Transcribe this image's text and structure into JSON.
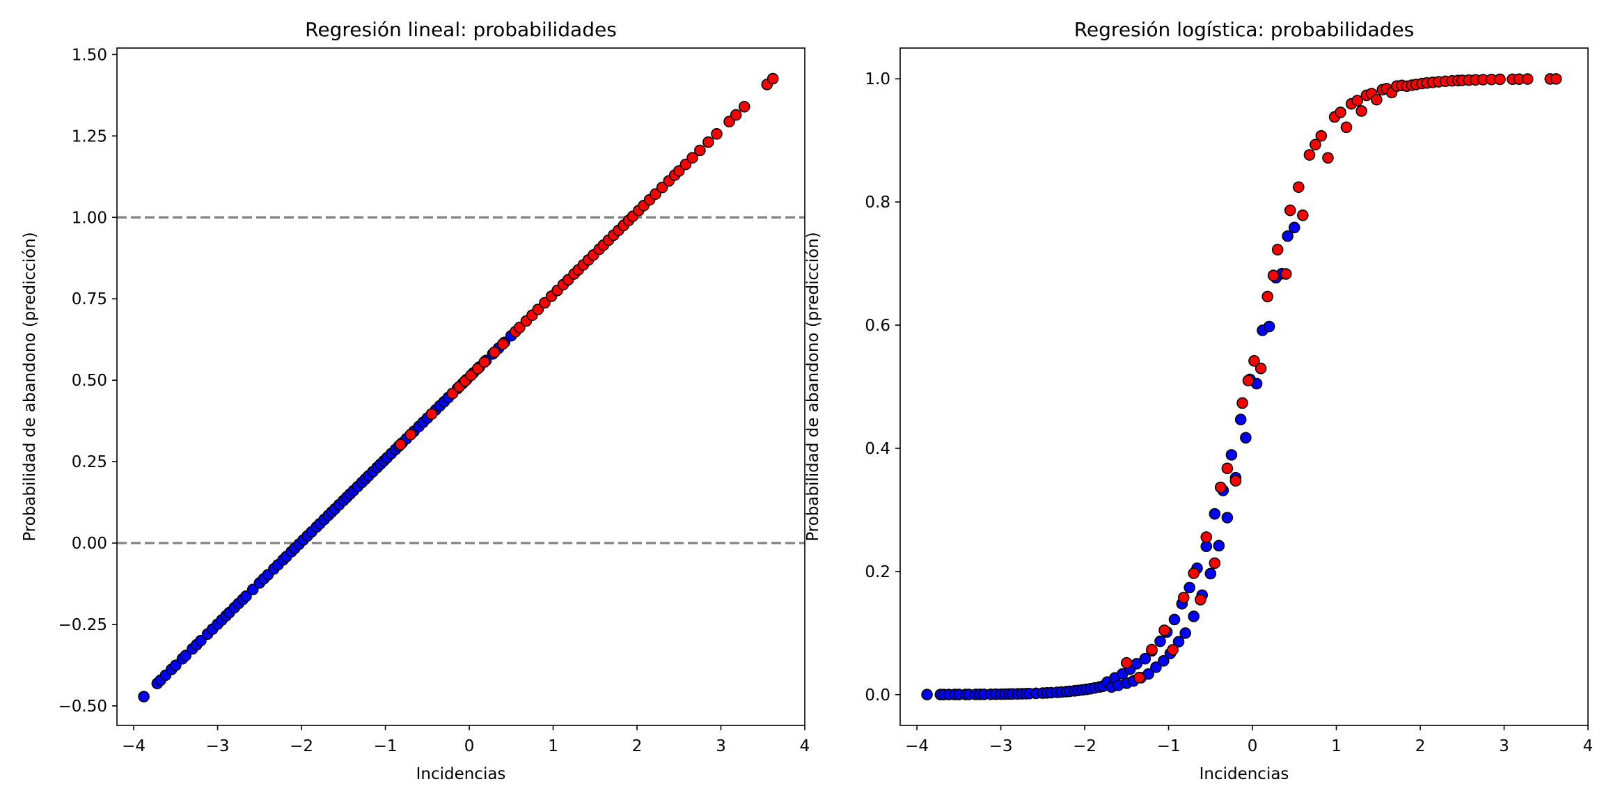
{
  "chart_data": [
    {
      "type": "scatter",
      "title": "Regresión lineal: probabilidades",
      "xlabel": "Incidencias",
      "ylabel": "Probabilidad de abandono (predicción)",
      "xlim": [
        -4.2,
        4.0
      ],
      "ylim": [
        -0.56,
        1.52
      ],
      "xticks": [
        -4,
        -3,
        -2,
        -1,
        0,
        1,
        2,
        3,
        4
      ],
      "xtick_labels": [
        "−4",
        "−3",
        "−2",
        "−1",
        "0",
        "1",
        "2",
        "3",
        "4"
      ],
      "yticks": [
        -0.5,
        -0.25,
        0.0,
        0.25,
        0.5,
        0.75,
        1.0,
        1.25,
        1.5
      ],
      "ytick_labels": [
        "−0.50",
        "−0.25",
        "0.00",
        "0.25",
        "0.50",
        "0.75",
        "1.00",
        "1.25",
        "1.50"
      ],
      "hlines": [
        {
          "y": 0.0,
          "style": "dashed",
          "color": "#808080"
        },
        {
          "y": 1.0,
          "style": "dashed",
          "color": "#808080"
        }
      ],
      "grid": false,
      "model": {
        "kind": "linear",
        "intercept": 0.51,
        "slope": 0.253
      },
      "series": [
        {
          "color": "#0000ff",
          "edgecolor": "#000000",
          "x": [
            -3.88,
            -3.72,
            -3.68,
            -3.62,
            -3.55,
            -3.5,
            -3.42,
            -3.38,
            -3.3,
            -3.25,
            -3.2,
            -3.12,
            -3.06,
            -3.0,
            -2.95,
            -2.9,
            -2.86,
            -2.8,
            -2.75,
            -2.7,
            -2.66,
            -2.58,
            -2.5,
            -2.45,
            -2.4,
            -2.33,
            -2.28,
            -2.22,
            -2.18,
            -2.12,
            -2.08,
            -2.03,
            -1.98,
            -1.93,
            -1.88,
            -1.82,
            -1.78,
            -1.73,
            -1.68,
            -1.64,
            -1.6,
            -1.55,
            -1.5,
            -1.46,
            -1.42,
            -1.38,
            -1.33,
            -1.28,
            -1.24,
            -1.2,
            -1.15,
            -1.1,
            -1.06,
            -1.02,
            -0.98,
            -0.93,
            -0.88,
            -0.84,
            -0.8,
            -0.75,
            -0.7,
            -0.66,
            -0.6,
            -0.55,
            -0.5,
            -0.45,
            -0.4,
            -0.35,
            -0.3,
            -0.25,
            -0.2,
            -0.14,
            -0.08,
            -0.03,
            0.05,
            0.12,
            0.2,
            0.28,
            0.35,
            0.42,
            0.5
          ]
        },
        {
          "color": "#ff0000",
          "edgecolor": "#000000",
          "x": [
            -0.82,
            -0.7,
            -0.45,
            -0.2,
            -0.12,
            -0.05,
            0.02,
            0.1,
            0.18,
            0.3,
            0.4,
            0.55,
            0.6,
            0.68,
            0.75,
            0.82,
            0.9,
            0.98,
            1.05,
            1.12,
            1.18,
            1.25,
            1.3,
            1.36,
            1.42,
            1.48,
            1.55,
            1.6,
            1.66,
            1.72,
            1.78,
            1.84,
            1.9,
            1.95,
            2.02,
            2.08,
            2.15,
            2.22,
            2.3,
            2.38,
            2.45,
            2.5,
            2.58,
            2.66,
            2.75,
            2.85,
            2.95,
            3.1,
            3.18,
            3.28,
            3.55,
            3.62
          ]
        }
      ]
    },
    {
      "type": "scatter",
      "title": "Regresión logística: probabilidades",
      "xlabel": "Incidencias",
      "ylabel": "Probabilidad de abandono (predicción)",
      "xlim": [
        -4.2,
        4.0
      ],
      "ylim": [
        -0.05,
        1.05
      ],
      "xticks": [
        -4,
        -3,
        -2,
        -1,
        0,
        1,
        2,
        3,
        4
      ],
      "xtick_labels": [
        "−4",
        "−3",
        "−2",
        "−1",
        "0",
        "1",
        "2",
        "3",
        "4"
      ],
      "yticks": [
        0.0,
        0.2,
        0.4,
        0.6,
        0.8,
        1.0
      ],
      "ytick_labels": [
        "0.0",
        "0.2",
        "0.4",
        "0.6",
        "0.8",
        "1.0"
      ],
      "grid": false,
      "model": {
        "kind": "logistic",
        "steepness": 2.4,
        "center": 0.0
      },
      "series": [
        {
          "color": "#0000ff",
          "edgecolor": "#000000",
          "x": [
            -3.88,
            -3.72,
            -3.68,
            -3.62,
            -3.55,
            -3.5,
            -3.42,
            -3.38,
            -3.3,
            -3.25,
            -3.2,
            -3.12,
            -3.06,
            -3.0,
            -2.95,
            -2.9,
            -2.86,
            -2.8,
            -2.75,
            -2.7,
            -2.66,
            -2.58,
            -2.5,
            -2.45,
            -2.4,
            -2.33,
            -2.28,
            -2.22,
            -2.18,
            -2.12,
            -2.08,
            -2.03,
            -1.98,
            -1.93,
            -1.88,
            -1.82,
            -1.78,
            -1.73,
            -1.68,
            -1.64,
            -1.6,
            -1.55,
            -1.5,
            -1.46,
            -1.42,
            -1.38,
            -1.33,
            -1.28,
            -1.24,
            -1.2,
            -1.15,
            -1.1,
            -1.06,
            -1.02,
            -0.98,
            -0.93,
            -0.88,
            -0.84,
            -0.8,
            -0.75,
            -0.7,
            -0.66,
            -0.6,
            -0.55,
            -0.5,
            -0.45,
            -0.4,
            -0.35,
            -0.3,
            -0.25,
            -0.2,
            -0.14,
            -0.08,
            -0.03,
            0.05,
            0.12,
            0.2,
            0.28,
            0.35,
            0.42,
            0.5
          ],
          "offset": [
            0.0,
            0.0,
            0.0,
            0.0,
            0.0,
            0.0,
            0.0,
            0.0,
            0.0,
            0.0,
            0.0,
            0.0,
            0.0,
            0.0,
            0.0,
            0.0,
            0.0,
            0.0,
            0.0,
            0.0,
            0.0,
            0.0,
            0.0,
            0.0,
            0.0,
            0.0,
            0.0,
            0.0,
            0.0,
            0.0,
            0.0,
            0.0,
            0.0,
            0.0,
            0.0,
            0.0,
            0.0,
            0.005,
            -0.005,
            0.008,
            -0.006,
            0.01,
            -0.008,
            0.012,
            -0.01,
            0.015,
            -0.012,
            0.014,
            -0.015,
            0.018,
            -0.015,
            0.02,
            -0.018,
            0.022,
            -0.02,
            0.025,
            -0.022,
            0.03,
            -0.028,
            0.032,
            -0.03,
            0.035,
            -0.03,
            0.03,
            -0.035,
            0.04,
            -0.035,
            0.03,
            -0.04,
            0.035,
            -0.03,
            0.03,
            -0.035,
            0.03,
            -0.025,
            0.02,
            -0.02,
            0.015,
            -0.015,
            0.012,
            -0.01
          ]
        },
        {
          "color": "#ff0000",
          "edgecolor": "#000000",
          "x": [
            -1.5,
            -1.35,
            -1.2,
            -1.05,
            -0.95,
            -0.82,
            -0.7,
            -0.62,
            -0.55,
            -0.45,
            -0.38,
            -0.3,
            -0.2,
            -0.12,
            -0.05,
            0.02,
            0.1,
            0.18,
            0.25,
            0.3,
            0.4,
            0.45,
            0.55,
            0.6,
            0.68,
            0.75,
            0.82,
            0.9,
            0.98,
            1.05,
            1.12,
            1.18,
            1.25,
            1.3,
            1.36,
            1.42,
            1.48,
            1.55,
            1.6,
            1.66,
            1.72,
            1.78,
            1.84,
            1.9,
            1.95,
            2.02,
            2.08,
            2.15,
            2.22,
            2.3,
            2.38,
            2.45,
            2.5,
            2.58,
            2.66,
            2.75,
            2.85,
            2.95,
            3.1,
            3.18,
            3.28,
            3.55,
            3.62
          ],
          "offset": [
            0.025,
            -0.01,
            0.02,
            0.03,
            -0.02,
            0.035,
            0.04,
            -0.03,
            0.045,
            -0.04,
            0.05,
            0.04,
            -0.035,
            0.045,
            0.04,
            0.03,
            -0.03,
            0.04,
            0.035,
            0.05,
            -0.04,
            0.04,
            0.035,
            -0.03,
            0.04,
            0.035,
            0.03,
            -0.025,
            0.025,
            0.02,
            -0.015,
            0.015,
            0.012,
            -0.01,
            0.01,
            0.008,
            -0.006,
            0.006,
            0.005,
            -0.004,
            0.004,
            0.003,
            0.0,
            0.0,
            0.0,
            0.0,
            0.0,
            0.0,
            0.0,
            0.0,
            0.0,
            0.0,
            0.0,
            0.0,
            0.0,
            0.0,
            0.0,
            0.0,
            0.0,
            0.0,
            0.0,
            0.0,
            0.0
          ]
        }
      ]
    }
  ]
}
